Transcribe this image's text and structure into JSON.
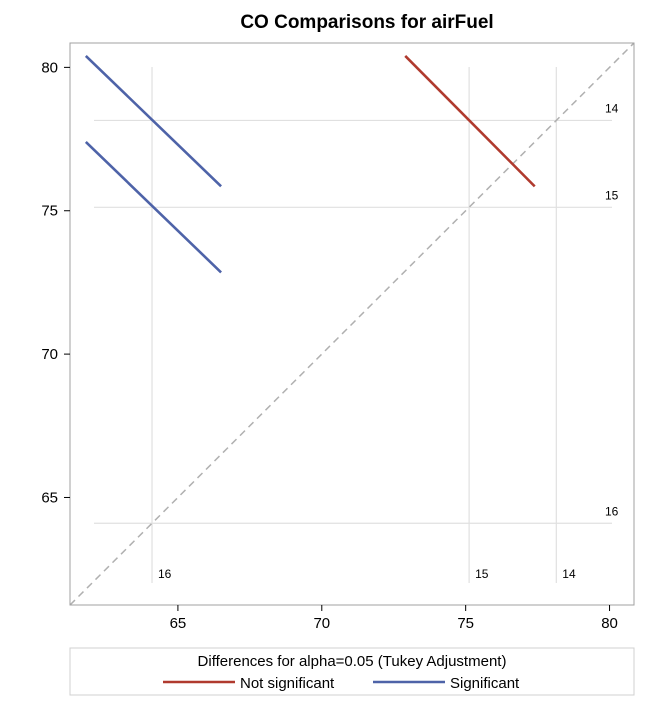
{
  "chart_data": {
    "type": "diffogram",
    "title": "CO Comparisons for airFuel",
    "xlim": [
      61.25,
      80.85
    ],
    "ylim": [
      61.25,
      80.85
    ],
    "x_ticks": [
      65,
      70,
      75,
      80
    ],
    "y_ticks": [
      65,
      70,
      75,
      80
    ],
    "levels": [
      {
        "name": "14",
        "mean": 78.15
      },
      {
        "name": "15",
        "mean": 75.12
      },
      {
        "name": "16",
        "mean": 64.1
      }
    ],
    "reference_line": {
      "style": "dashed",
      "color": "#b0b0b0",
      "slope": 1
    },
    "series": [
      {
        "name": "Not significant",
        "color": "#b03a2e",
        "segments": [
          {
            "pair": [
              "15",
              "14"
            ],
            "x": [
              72.9,
              77.4
            ],
            "y": [
              80.4,
              75.85
            ]
          }
        ]
      },
      {
        "name": "Significant",
        "color": "#4e63a8",
        "segments": [
          {
            "pair": [
              "16",
              "14"
            ],
            "x": [
              61.8,
              66.5
            ],
            "y": [
              80.4,
              75.85
            ]
          },
          {
            "pair": [
              "16",
              "15"
            ],
            "x": [
              61.8,
              66.5
            ],
            "y": [
              77.4,
              72.85
            ]
          }
        ]
      }
    ],
    "legend": {
      "title": "Differences for alpha=0.05 (Tukey Adjustment)",
      "position": "bottom",
      "entries": [
        "Not significant",
        "Significant"
      ]
    }
  },
  "colors": {
    "frame": "#a0a0a0",
    "level_lines": "#e0e0e0",
    "legend_border": "#d0d0d0"
  }
}
